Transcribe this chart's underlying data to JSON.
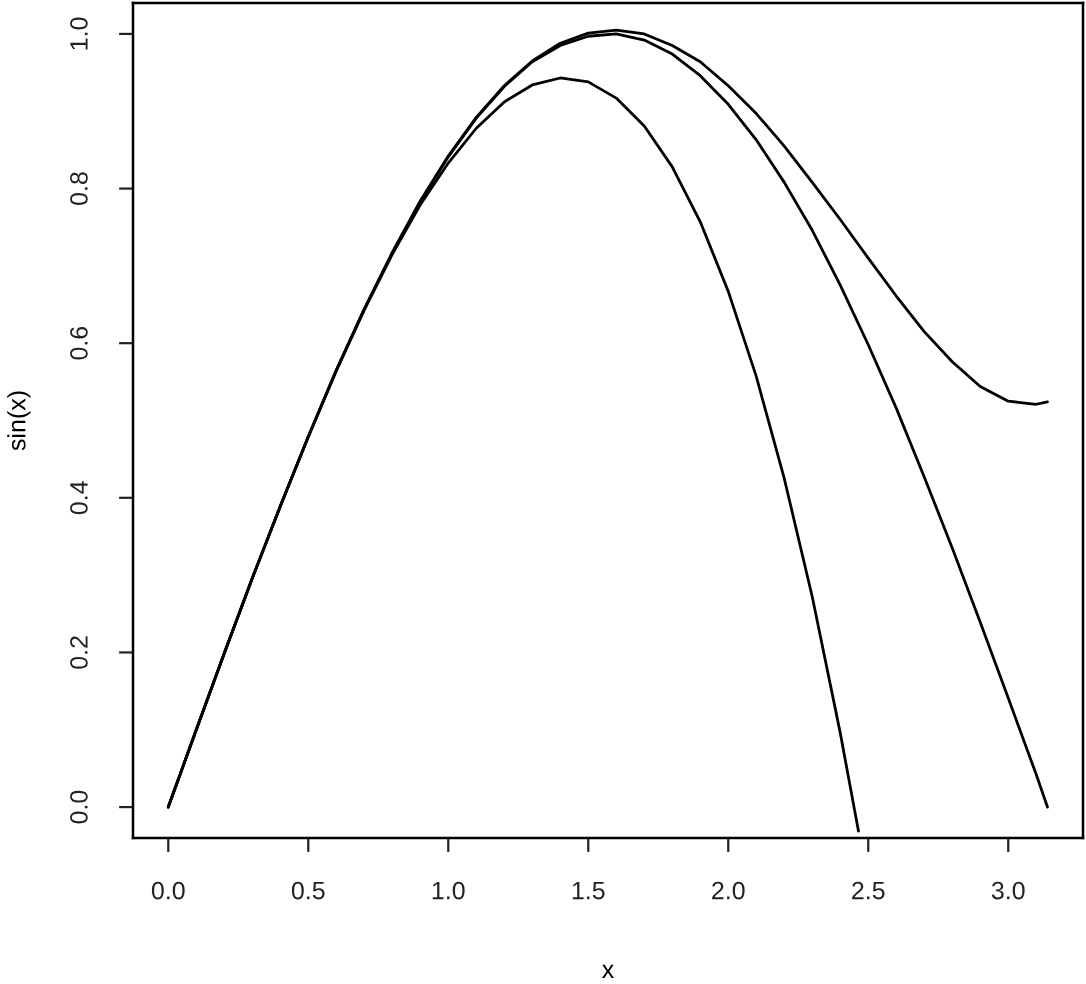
{
  "chart_data": {
    "type": "line",
    "xlabel": "x",
    "ylabel": "sin(x)",
    "line_style": "solid",
    "xlim": [
      -0.126,
      3.267
    ],
    "ylim": [
      -0.04,
      1.04
    ],
    "xticks": [
      {
        "value": 0,
        "label": "0.0"
      },
      0.5,
      {
        "value": 1,
        "label": "1.0"
      },
      1.5,
      {
        "value": 2,
        "label": "2.0"
      },
      2.5,
      {
        "value": 3,
        "label": "3.0"
      }
    ],
    "yticks": [
      {
        "value": 0,
        "label": "0.0"
      },
      0.2,
      0.4,
      0.6,
      0.8,
      {
        "value": 1,
        "label": "1.0"
      }
    ],
    "series": [
      {
        "color": "#000000",
        "x": [
          0,
          0.1,
          0.2,
          0.3,
          0.4,
          0.5,
          0.6,
          0.7,
          0.8,
          0.9,
          1.0,
          1.1,
          1.2,
          1.3,
          1.4,
          1.5,
          1.6,
          1.7,
          1.8,
          1.9,
          2.0,
          2.1,
          2.2,
          2.3,
          2.4,
          2.5,
          2.6,
          2.7,
          2.8,
          2.9,
          3.0,
          3.1,
          3.14
        ],
        "values": [
          0,
          0.1,
          0.199,
          0.296,
          0.389,
          0.479,
          0.565,
          0.644,
          0.717,
          0.783,
          0.841,
          0.891,
          0.932,
          0.964,
          0.985,
          0.997,
          1.0,
          0.992,
          0.974,
          0.946,
          0.909,
          0.863,
          0.808,
          0.746,
          0.675,
          0.598,
          0.516,
          0.427,
          0.335,
          0.239,
          0.141,
          0.042,
          0.0
        ]
      },
      {
        "color": "#000000",
        "x": [
          0,
          0.1,
          0.2,
          0.3,
          0.4,
          0.5,
          0.6,
          0.7,
          0.8,
          0.9,
          1.0,
          1.1,
          1.2,
          1.3,
          1.4,
          1.5,
          1.6,
          1.7,
          1.8,
          1.9,
          2.0,
          2.1,
          2.2,
          2.3,
          2.4,
          2.465
        ],
        "values": [
          0,
          0.1,
          0.199,
          0.296,
          0.389,
          0.479,
          0.564,
          0.643,
          0.715,
          0.779,
          0.833,
          0.878,
          0.912,
          0.934,
          0.943,
          0.938,
          0.917,
          0.881,
          0.828,
          0.757,
          0.667,
          0.557,
          0.425,
          0.272,
          0.096,
          -0.031
        ]
      },
      {
        "color": "#000000",
        "x": [
          0,
          0.1,
          0.2,
          0.3,
          0.4,
          0.5,
          0.6,
          0.7,
          0.8,
          0.9,
          1.0,
          1.1,
          1.2,
          1.3,
          1.4,
          1.5,
          1.6,
          1.7,
          1.8,
          1.9,
          2.0,
          2.1,
          2.2,
          2.3,
          2.4,
          2.5,
          2.6,
          2.7,
          2.8,
          2.9,
          3.0,
          3.1,
          3.14
        ],
        "values": [
          0,
          0.1,
          0.199,
          0.296,
          0.389,
          0.479,
          0.565,
          0.644,
          0.717,
          0.784,
          0.842,
          0.892,
          0.933,
          0.965,
          0.988,
          1.001,
          1.005,
          1.0,
          0.985,
          0.964,
          0.933,
          0.897,
          0.855,
          0.808,
          0.76,
          0.71,
          0.661,
          0.615,
          0.576,
          0.544,
          0.525,
          0.521,
          0.524
        ]
      }
    ]
  }
}
